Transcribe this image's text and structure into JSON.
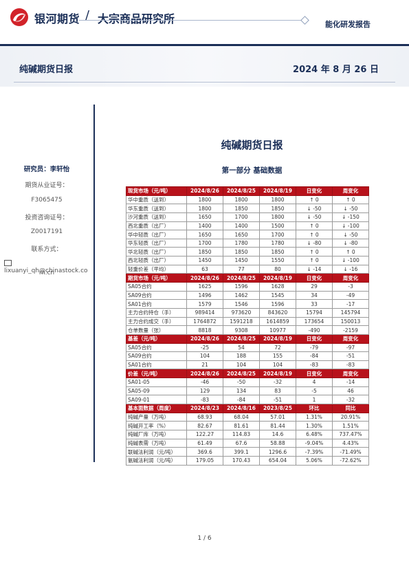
{
  "header": {
    "brand": "银河期货",
    "institute": "大宗商品研究所",
    "tag": "能化研发报告"
  },
  "band": {
    "title": "纯碱期货日报",
    "date": "2024 年 8 月 26 日"
  },
  "sidebar": {
    "analyst": "研究员：李轩怡",
    "cert_label": "期货从业证号：",
    "cert_no": "F3065475",
    "consult_label": "投资咨询证号：",
    "consult_no": "Z0017191",
    "contact_label": "联系方式：",
    "email_line1": "lixuanyi_qh@chinastock.co",
    "email_line2": "m.cn"
  },
  "doc": {
    "title": "纯碱期货日报",
    "section": "第一部分    基础数据"
  },
  "table": [
    {
      "header": true,
      "cells": [
        "现货市场（元/吨）",
        "2024/8/26",
        "2024/8/25",
        "2024/8/19",
        "日变化",
        "周变化"
      ]
    },
    {
      "cells": [
        "华中重质（送到）",
        "1800",
        "1800",
        "1800",
        "↑ 0",
        "↑ 0"
      ]
    },
    {
      "cells": [
        "华东重质（送到）",
        "1800",
        "1850",
        "1850",
        "↓ -50",
        "↓ -50"
      ]
    },
    {
      "cells": [
        "沙河重质（送到）",
        "1650",
        "1700",
        "1800",
        "↓ -50",
        "↓ -150"
      ]
    },
    {
      "cells": [
        "西北重质（出厂）",
        "1400",
        "1400",
        "1500",
        "↑ 0",
        "↓ -100"
      ]
    },
    {
      "cells": [
        "华中轻质（出厂）",
        "1650",
        "1650",
        "1700",
        "↑ 0",
        "↓ -50"
      ]
    },
    {
      "cells": [
        "华东轻质（出厂）",
        "1700",
        "1780",
        "1780",
        "↓ -80",
        "↓ -80"
      ]
    },
    {
      "cells": [
        "华北轻质（出厂）",
        "1850",
        "1850",
        "1850",
        "↑ 0",
        "↑ 0"
      ]
    },
    {
      "cells": [
        "西北轻质（出厂）",
        "1450",
        "1450",
        "1550",
        "↑ 0",
        "↓ -100"
      ]
    },
    {
      "cells": [
        "轻重价差（平均）",
        "63",
        "77",
        "80",
        "↓ -14",
        "↓ -16"
      ]
    },
    {
      "header": true,
      "cells": [
        "期货市场（元/吨）",
        "2024/8/26",
        "2024/8/25",
        "2024/8/19",
        "日变化",
        "周变化"
      ]
    },
    {
      "cells": [
        "SA05合约",
        "1625",
        "1596",
        "1628",
        "29",
        "-3"
      ]
    },
    {
      "cells": [
        "SA09合约",
        "1496",
        "1462",
        "1545",
        "34",
        "-49"
      ]
    },
    {
      "cells": [
        "SA01合约",
        "1579",
        "1546",
        "1596",
        "33",
        "-17"
      ]
    },
    {
      "cells": [
        "主力合约持仓（手）",
        "989414",
        "973620",
        "843620",
        "15794",
        "145794"
      ]
    },
    {
      "cells": [
        "主力合约成交（手）",
        "1764872",
        "1591218",
        "1614859",
        "173654",
        "150013"
      ]
    },
    {
      "cells": [
        "仓单数量（张）",
        "8818",
        "9308",
        "10977",
        "-490",
        "-2159"
      ]
    },
    {
      "header": true,
      "cells": [
        "基差（元/吨）",
        "2024/8/26",
        "2024/8/25",
        "2024/8/19",
        "日变化",
        "周变化"
      ]
    },
    {
      "cells": [
        "SA05合约",
        "-25",
        "54",
        "72",
        "-79",
        "-97"
      ]
    },
    {
      "cells": [
        "SA09合约",
        "104",
        "188",
        "155",
        "-84",
        "-51"
      ]
    },
    {
      "cells": [
        "SA01合约",
        "21",
        "104",
        "104",
        "-83",
        "-83"
      ]
    },
    {
      "header": true,
      "cells": [
        "价差（元/吨）",
        "2024/8/26",
        "2024/8/25",
        "2024/8/19",
        "日变化",
        "周变化"
      ]
    },
    {
      "cells": [
        "SA01-05",
        "-46",
        "-50",
        "-32",
        "4",
        "-14"
      ]
    },
    {
      "cells": [
        "SA05-09",
        "129",
        "134",
        "83",
        "-5",
        "46"
      ]
    },
    {
      "cells": [
        "SA09-01",
        "-83",
        "-84",
        "-51",
        "1",
        "-32"
      ]
    },
    {
      "header": true,
      "cells": [
        "基本面数据（周度）",
        "2024/8/23",
        "2024/8/16",
        "2023/8/25",
        "环比",
        "同比"
      ]
    },
    {
      "cells": [
        "纯碱产量（万吨）",
        "68.93",
        "68.04",
        "57.01",
        "1.31%",
        "20.91%"
      ]
    },
    {
      "cells": [
        "纯碱开工率（%）",
        "82.67",
        "81.61",
        "81.44",
        "1.30%",
        "1.51%"
      ]
    },
    {
      "cells": [
        "纯碱厂库（万吨）",
        "122.27",
        "114.83",
        "14.6",
        "6.48%",
        "737.47%"
      ]
    },
    {
      "cells": [
        "纯碱表需（万吨）",
        "61.49",
        "67.6",
        "58.88",
        "-9.04%",
        "4.43%"
      ]
    },
    {
      "cells": [
        "联碱法利润（元/吨）",
        "369.6",
        "399.1",
        "1296.6",
        "-7.39%",
        "-71.49%"
      ]
    },
    {
      "cells": [
        "氨碱法利润（元/吨）",
        "179.05",
        "170.43",
        "654.04",
        "5.06%",
        "-72.62%"
      ]
    }
  ],
  "footer": {
    "page": "1 / 6"
  },
  "colors": {
    "brand_navy": "#1a2e57",
    "header_red": "#b8121b",
    "logo_red": "#d2232a"
  },
  "icons": {
    "logo": "galaxy-swirl-logo-icon",
    "email": "envelope-icon"
  }
}
